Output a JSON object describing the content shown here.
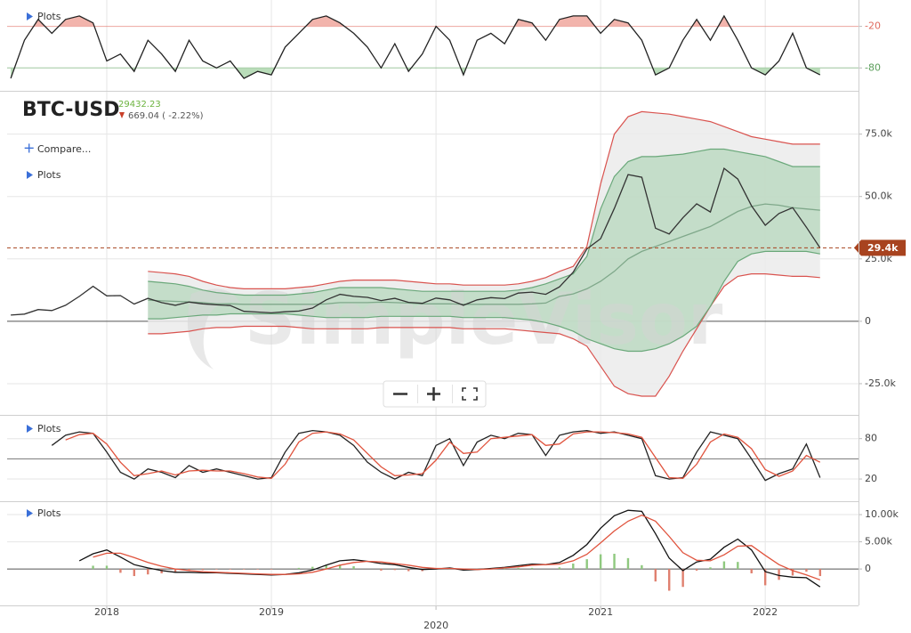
{
  "chart_data": [
    {
      "type": "line",
      "plots_label": "Plots",
      "ylim": [
        -113,
        18
      ],
      "yticks": [
        -20,
        -80
      ],
      "tick_colors": [
        "#e06b5f",
        "#5b9e5b"
      ],
      "grid": true,
      "upper_fill": "#f2b4ac",
      "lower_fill": "#b9dcb9",
      "series": [
        {
          "color": "#222222",
          "values": [
            -95,
            -40,
            -10,
            -30,
            -10,
            -5,
            -15,
            -70,
            -60,
            -85,
            -40,
            -60,
            -85,
            -40,
            -70,
            -80,
            -70,
            -95,
            -85,
            -90,
            -50,
            -30,
            -10,
            -5,
            -15,
            -30,
            -50,
            -80,
            -45,
            -85,
            -60,
            -20,
            -40,
            -90,
            -40,
            -30,
            -45,
            -10,
            -15,
            -40,
            -10,
            -5,
            -5,
            -30,
            -10,
            -15,
            -40,
            -90,
            -80,
            -40,
            -10,
            -40,
            -5,
            -40,
            -80,
            -90,
            -70,
            -30,
            -80,
            -90
          ]
        }
      ]
    },
    {
      "type": "line",
      "title": "BTC-USD",
      "last_price": 29432.23,
      "change_label": "669.04 ( -2.22%)",
      "last_label": "29.4k",
      "compare_label": "Compare...",
      "plots_label": "Plots",
      "watermark": "SimpleVisor",
      "ylim": [
        -37500,
        92000
      ],
      "yticks": [
        {
          "value": 75000,
          "label": "75.0k"
        },
        {
          "value": 50000,
          "label": "50.0k"
        },
        {
          "value": 25000,
          "label": "25.0k"
        },
        0,
        {
          "value": -25000,
          "label": "-25.0k"
        }
      ],
      "grid": true,
      "last_color": "#a8431f",
      "bands": [
        {
          "fill": "#ebebeb",
          "color": "#d9534f",
          "upper": [
            null,
            null,
            null,
            null,
            null,
            null,
            null,
            null,
            null,
            null,
            20000,
            19500,
            19000,
            18000,
            16000,
            14500,
            13500,
            13000,
            13000,
            13000,
            13000,
            13500,
            14000,
            15000,
            16000,
            16500,
            16500,
            16500,
            16500,
            16000,
            15500,
            15000,
            15000,
            14500,
            14500,
            14500,
            14500,
            15000,
            16000,
            17500,
            20000,
            22000,
            30000,
            55000,
            75000,
            82000,
            84000,
            83500,
            83000,
            82000,
            81000,
            80000,
            78000,
            76000,
            74000,
            73000,
            72000,
            71000,
            71000,
            71000
          ],
          "lower": [
            null,
            null,
            null,
            null,
            null,
            null,
            null,
            null,
            null,
            null,
            -5000,
            -5000,
            -4500,
            -4000,
            -3000,
            -2500,
            -2500,
            -2000,
            -2000,
            -2000,
            -2000,
            -2500,
            -3000,
            -3000,
            -3000,
            -3000,
            -3000,
            -2500,
            -2500,
            -2500,
            -2500,
            -2500,
            -2500,
            -3000,
            -3000,
            -3000,
            -3000,
            -3500,
            -4000,
            -4500,
            -5000,
            -7000,
            -10000,
            -18000,
            -26000,
            -29000,
            -30000,
            -30000,
            -22000,
            -12000,
            -3000,
            6000,
            14000,
            18000,
            19000,
            19000,
            18500,
            18000,
            18000,
            17500
          ]
        },
        {
          "fill": "#bcd9c2",
          "color": "#6aa87a",
          "upper": [
            null,
            null,
            null,
            null,
            null,
            null,
            null,
            null,
            null,
            null,
            16000,
            15500,
            15000,
            14000,
            12500,
            11500,
            11000,
            10500,
            10500,
            10500,
            10500,
            11000,
            11500,
            12500,
            13500,
            13500,
            13500,
            13500,
            13000,
            12500,
            12000,
            12000,
            12000,
            12000,
            12000,
            12000,
            12000,
            12500,
            13500,
            15000,
            17000,
            19000,
            26000,
            45000,
            58000,
            64000,
            66000,
            66000,
            66500,
            67000,
            68000,
            69000,
            69000,
            68000,
            67000,
            66000,
            64000,
            62000,
            62000,
            62000
          ],
          "lower": [
            null,
            null,
            null,
            null,
            null,
            null,
            null,
            null,
            null,
            null,
            1000,
            1000,
            1500,
            2000,
            2500,
            2500,
            3000,
            3000,
            3000,
            3000,
            3000,
            2500,
            2000,
            1500,
            1500,
            1500,
            1500,
            2000,
            2000,
            2000,
            2000,
            2000,
            2000,
            1500,
            1500,
            1500,
            1500,
            1000,
            500,
            -500,
            -2000,
            -4000,
            -7000,
            -9000,
            -11000,
            -12000,
            -12000,
            -11000,
            -9000,
            -6000,
            -2000,
            6000,
            16000,
            24000,
            27000,
            28000,
            28000,
            28000,
            28000,
            27000
          ]
        }
      ],
      "series": [
        {
          "color": "#7fa88a",
          "values": [
            null,
            null,
            null,
            null,
            null,
            null,
            null,
            null,
            null,
            null,
            8500,
            8200,
            8000,
            7800,
            7500,
            7000,
            7000,
            6800,
            6800,
            6800,
            6800,
            6800,
            6800,
            7000,
            7500,
            7500,
            7500,
            7700,
            7500,
            7300,
            7000,
            7000,
            7000,
            6800,
            6800,
            6800,
            6800,
            6800,
            7000,
            7300,
            10000,
            11000,
            13000,
            16000,
            20000,
            25000,
            28000,
            30000,
            32000,
            34000,
            36000,
            38000,
            41000,
            44000,
            46000,
            47000,
            46500,
            45500,
            45000,
            44500
          ]
        },
        {
          "color": "#333333",
          "values": [
            2500,
            2900,
            4700,
            4300,
            6400,
            10000,
            14000,
            10200,
            10300,
            6900,
            9200,
            7500,
            6400,
            7700,
            7000,
            6600,
            6300,
            4000,
            3700,
            3400,
            3800,
            4100,
            5300,
            8600,
            10800,
            10000,
            9600,
            8300,
            9200,
            7600,
            7200,
            9300,
            8600,
            6400,
            8600,
            9500,
            9100,
            11300,
            11700,
            10800,
            13800,
            19700,
            29000,
            33100,
            45200,
            58800,
            57700,
            37300,
            35000,
            41500,
            47100,
            43800,
            61300,
            57000,
            46300,
            38500,
            43200,
            45500,
            37700,
            29400
          ]
        }
      ]
    },
    {
      "type": "line",
      "plots_label": "Plots",
      "ylim": [
        -13,
        114
      ],
      "yticks": [
        80,
        20
      ],
      "midline": 50,
      "grid": true,
      "series": [
        {
          "color": "#222222",
          "values": [
            null,
            null,
            null,
            70,
            85,
            90,
            88,
            60,
            30,
            20,
            35,
            30,
            22,
            40,
            30,
            35,
            30,
            25,
            20,
            22,
            60,
            88,
            92,
            90,
            85,
            70,
            45,
            30,
            20,
            30,
            25,
            70,
            80,
            40,
            75,
            85,
            80,
            88,
            86,
            55,
            85,
            90,
            92,
            88,
            90,
            85,
            80,
            25,
            20,
            22,
            60,
            90,
            85,
            80,
            50,
            18,
            28,
            35,
            72,
            22
          ]
        },
        {
          "color": "#e0533d",
          "values": [
            null,
            null,
            null,
            null,
            78,
            86,
            88,
            72,
            45,
            25,
            28,
            32,
            26,
            32,
            33,
            32,
            32,
            28,
            23,
            21,
            42,
            75,
            88,
            90,
            87,
            78,
            58,
            38,
            25,
            26,
            28,
            48,
            75,
            58,
            60,
            80,
            82,
            84,
            86,
            70,
            72,
            87,
            90,
            90,
            89,
            87,
            82,
            52,
            22,
            21,
            42,
            75,
            87,
            82,
            65,
            34,
            24,
            32,
            55,
            45
          ]
        }
      ]
    },
    {
      "type": "line",
      "plots_label": "Plots",
      "ylim": [
        -6700,
        12300
      ],
      "yticks": [
        {
          "value": 10000,
          "label": "10.00k"
        },
        {
          "value": 5000,
          "label": "5.00k"
        },
        0
      ],
      "grid": true,
      "categories": [
        null,
        null,
        null,
        null,
        null,
        null,
        null,
        "2018",
        null,
        null,
        null,
        null,
        null,
        null,
        null,
        null,
        null,
        null,
        null,
        "2019",
        null,
        null,
        null,
        null,
        null,
        null,
        null,
        null,
        null,
        null,
        null,
        "2020",
        null,
        null,
        null,
        null,
        null,
        null,
        null,
        null,
        null,
        null,
        null,
        "2021",
        null,
        null,
        null,
        null,
        null,
        null,
        null,
        null,
        null,
        null,
        null,
        "2022",
        null,
        null,
        null,
        null
      ],
      "histogram": {
        "positive_color": "#8fc97f",
        "negative_color": "#e0806f",
        "values": [
          null,
          null,
          null,
          null,
          null,
          null,
          600,
          600,
          -700,
          -1300,
          -1000,
          -800,
          -600,
          -300,
          -200,
          -100,
          -100,
          -100,
          -100,
          -100,
          0,
          200,
          400,
          700,
          800,
          500,
          0,
          -300,
          -200,
          -400,
          -400,
          -100,
          100,
          -200,
          0,
          100,
          100,
          200,
          200,
          0,
          300,
          1000,
          1800,
          2700,
          2800,
          2000,
          700,
          -2300,
          -4000,
          -3300,
          -300,
          300,
          1400,
          1300,
          -800,
          -3000,
          -2000,
          -1200,
          -500,
          -1300
        ]
      },
      "series": [
        {
          "color": "#111111",
          "values": [
            null,
            null,
            null,
            null,
            null,
            1500,
            2800,
            3500,
            2200,
            800,
            200,
            -300,
            -600,
            -600,
            -700,
            -700,
            -800,
            -900,
            -1000,
            -1100,
            -1000,
            -700,
            -200,
            700,
            1500,
            1700,
            1400,
            1000,
            800,
            300,
            -100,
            0,
            200,
            -200,
            -100,
            100,
            300,
            600,
            900,
            800,
            1200,
            2500,
            4500,
            7500,
            9800,
            10800,
            10600,
            6500,
            2000,
            -300,
            1300,
            1800,
            4000,
            5500,
            3500,
            -500,
            -1200,
            -1500,
            -1600,
            -3300
          ]
        },
        {
          "color": "#e0533d",
          "values": [
            null,
            null,
            null,
            null,
            null,
            null,
            2200,
            2900,
            2900,
            2100,
            1200,
            500,
            0,
            -300,
            -500,
            -600,
            -700,
            -800,
            -900,
            -1000,
            -1000,
            -900,
            -600,
            0,
            700,
            1200,
            1400,
            1300,
            1000,
            700,
            300,
            100,
            100,
            0,
            -100,
            0,
            200,
            400,
            700,
            800,
            900,
            1500,
            2700,
            4800,
            7000,
            8800,
            9900,
            8800,
            6000,
            3000,
            1600,
            1500,
            2600,
            4200,
            4300,
            2500,
            800,
            -300,
            -1100,
            -2000
          ]
        }
      ]
    }
  ]
}
